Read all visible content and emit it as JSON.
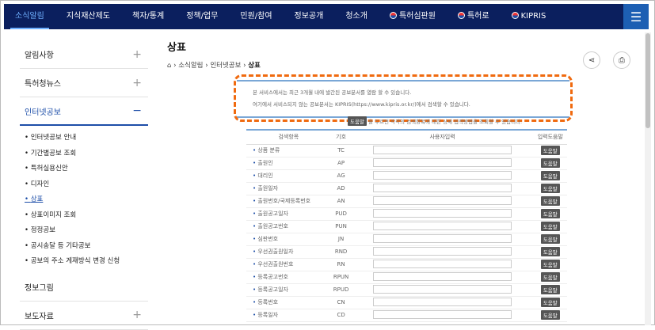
{
  "nav": {
    "items": [
      "소식알림",
      "지식재산제도",
      "책자/통계",
      "정책/업무",
      "민원/참여",
      "정보공개",
      "청소개"
    ],
    "links": [
      "특허심판원",
      "특허로",
      "KIPRIS"
    ],
    "menu_icon": "hamburger-icon"
  },
  "sidebar": {
    "sections": [
      {
        "label": "알림사항",
        "toggle": "+"
      },
      {
        "label": "특허청뉴스",
        "toggle": "+"
      },
      {
        "label": "인터넷공보",
        "toggle": "−",
        "items": [
          "인터넷공보 안내",
          "기간별공보 조회",
          "특허실용신안",
          "디자인",
          "상표",
          "상표이미지 조회",
          "정정공보",
          "공시송달 등 기타공보",
          "공보의 주소 게재방식 변경 신청"
        ]
      },
      {
        "label": "정보그림",
        "toggle": ""
      },
      {
        "label": "보도자료",
        "toggle": "+"
      }
    ]
  },
  "main": {
    "title": "상표",
    "breadcrumb": [
      "소식알림",
      "인터넷공보",
      "상표"
    ],
    "notice": [
      "본 서비스에서는 최근 3개월 내에 발간된 공보분서를 열람 할 수 있습니다.",
      "여기에서 서비스되지 않는 공보분서는 KIPRIS(https://www.kipris.or.kr/)에서 검색할 수 있습니다."
    ],
    "help_badge": "도움말",
    "help_text": "을 누르면 각각의 검색항목에 대한 상세 입력방법을 조회할 수 있습니다.",
    "table": {
      "headers": [
        "검색항목",
        "기호",
        "사용자입력",
        "입력도움말"
      ],
      "rows": [
        [
          "상품 분류",
          "TC"
        ],
        [
          "출원인",
          "AP"
        ],
        [
          "대리인",
          "AG"
        ],
        [
          "출원일자",
          "AD"
        ],
        [
          "출원번호/국제등록번호",
          "AN"
        ],
        [
          "출원공고일자",
          "PUD"
        ],
        [
          "출원공고번호",
          "PUN"
        ],
        [
          "심판번호",
          "JN"
        ],
        [
          "우선권출원일자",
          "RND"
        ],
        [
          "우선권출원번호",
          "RN"
        ],
        [
          "등록공고번호",
          "RPUN"
        ],
        [
          "등록공고일자",
          "RPUD"
        ],
        [
          "등록번호",
          "CN"
        ],
        [
          "등록일자",
          "CD"
        ]
      ],
      "help_label": "도움말"
    }
  },
  "colors": {
    "nav": "#0b1f5e",
    "accent": "#1d4ea8",
    "highlight": "#f06a0f"
  }
}
